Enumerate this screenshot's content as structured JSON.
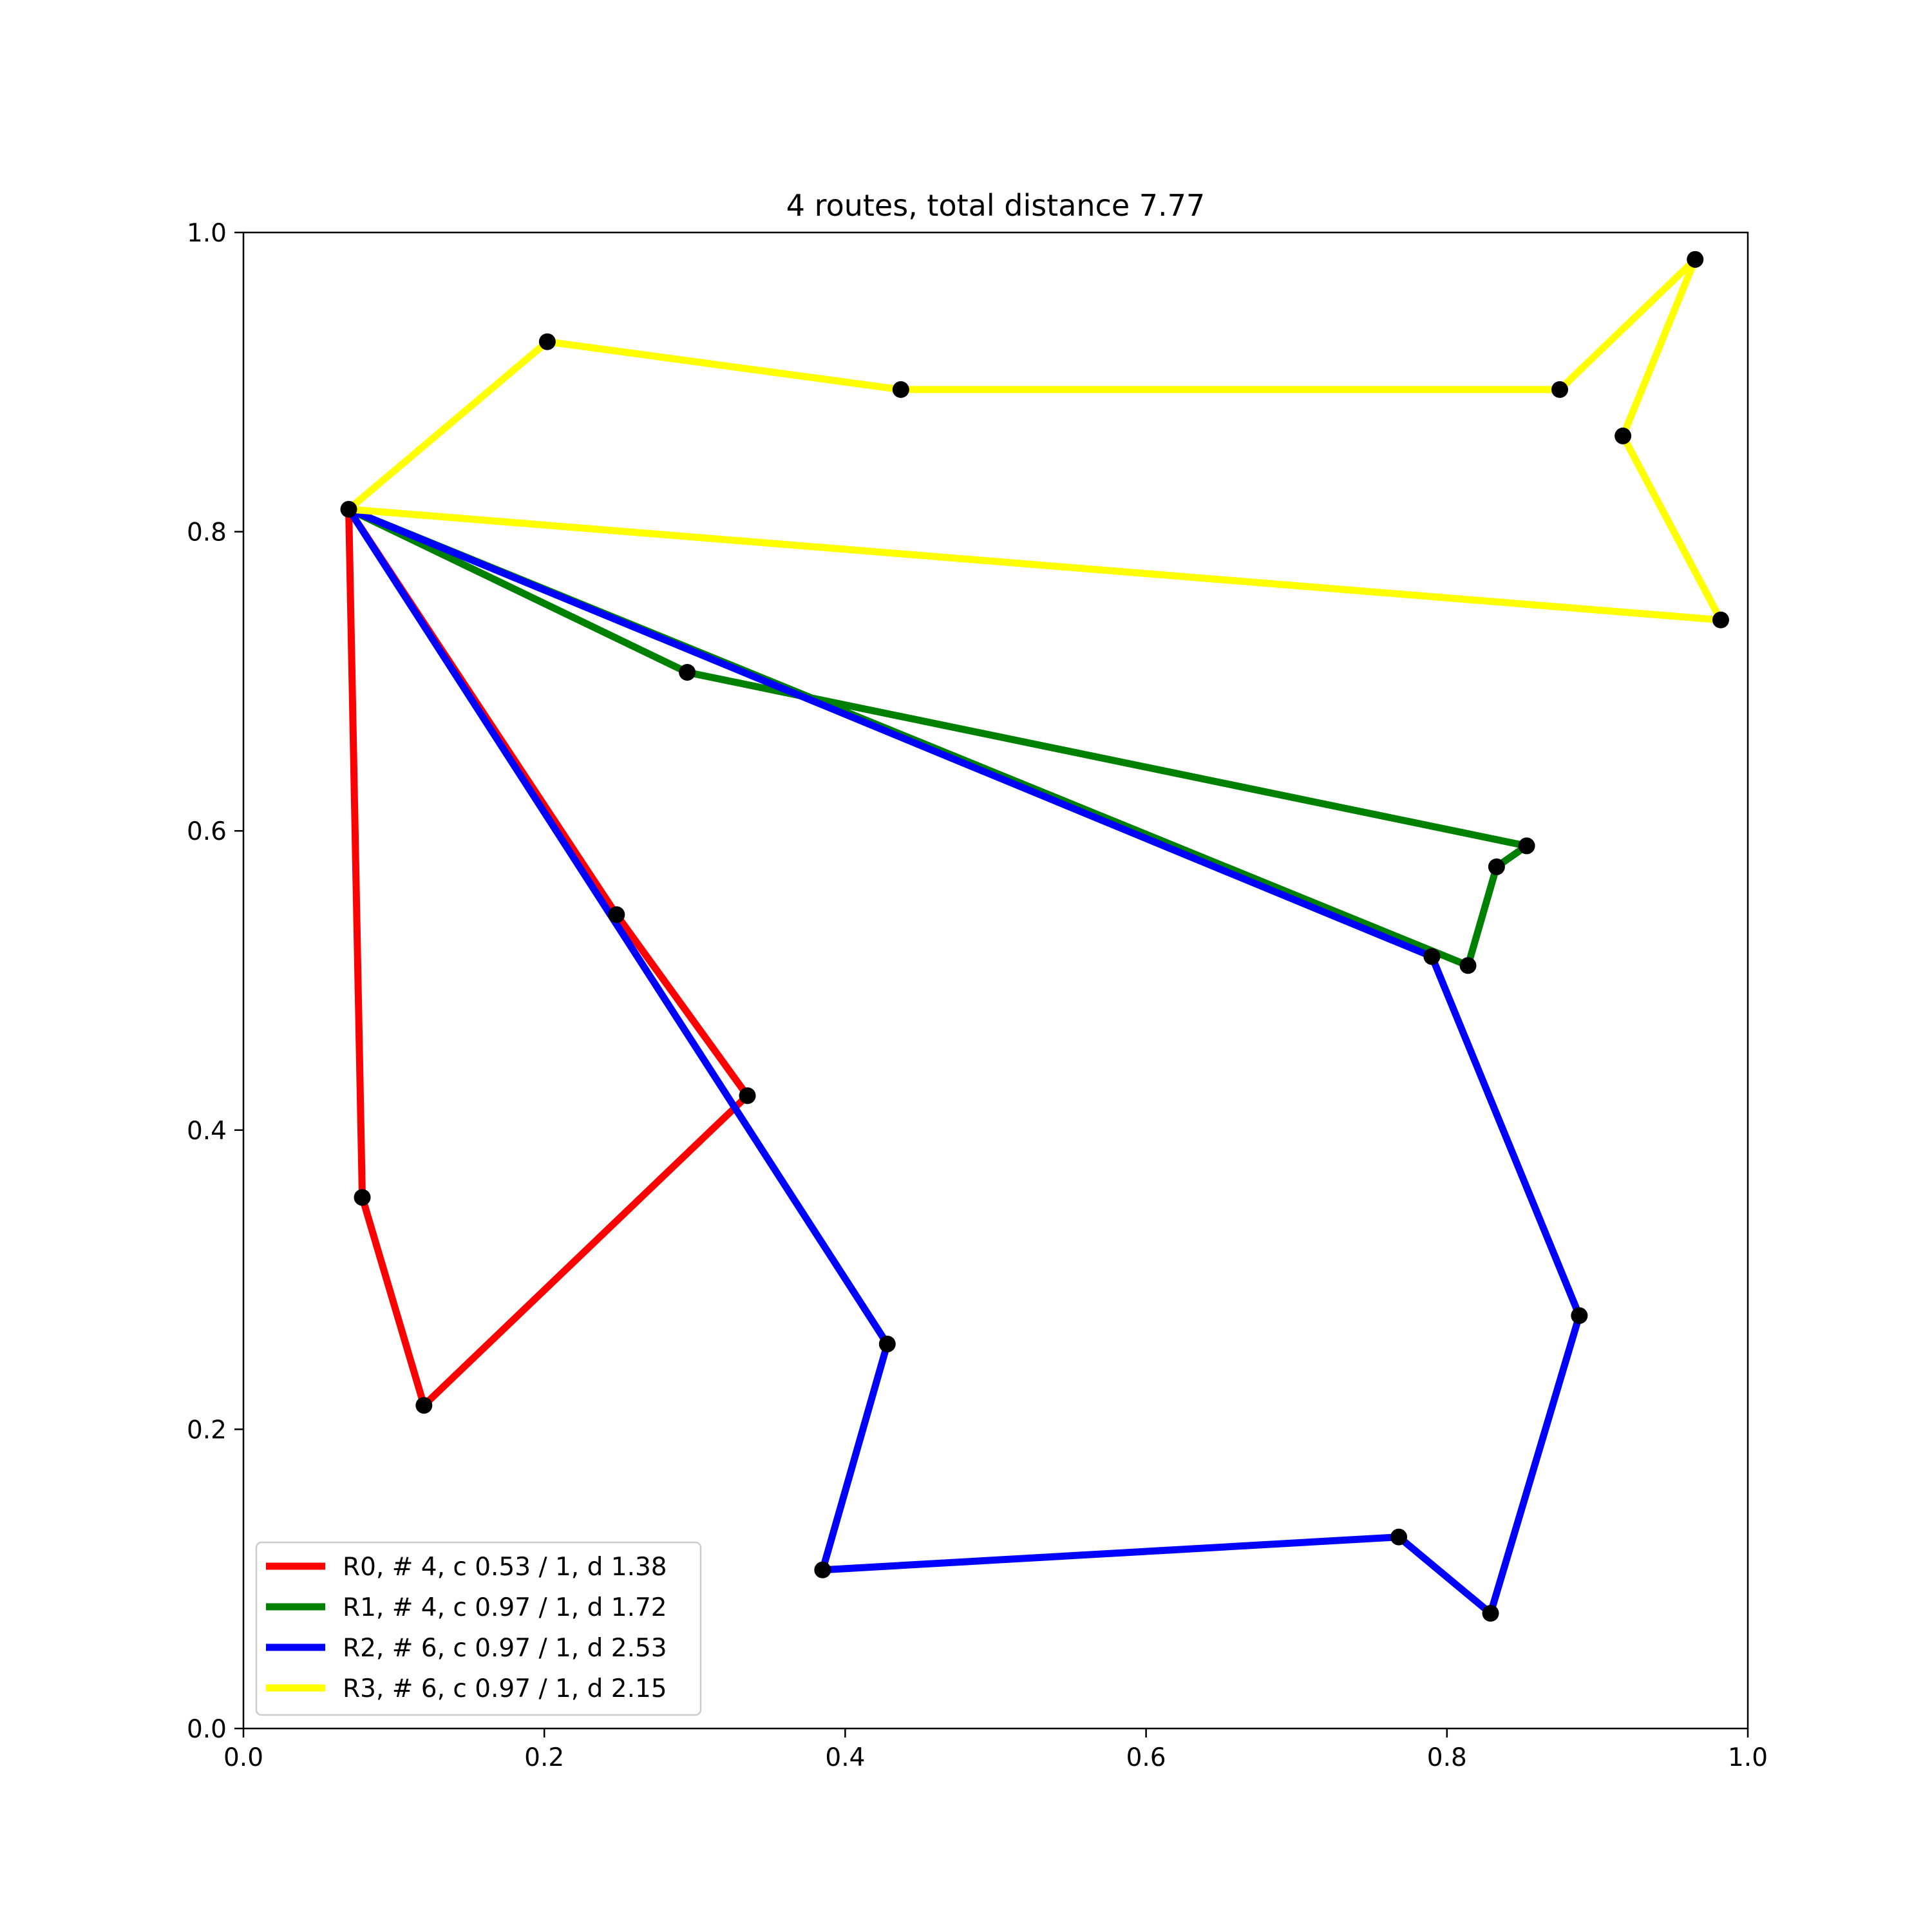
{
  "chart_data": {
    "type": "line",
    "title": "4 routes, total distance 7.77",
    "xlabel": "",
    "ylabel": "",
    "xlim": [
      0.0,
      1.0
    ],
    "ylim": [
      0.0,
      1.0
    ],
    "x_ticks": [
      "0.0",
      "0.2",
      "0.4",
      "0.6",
      "0.8",
      "1.0"
    ],
    "y_ticks": [
      "0.0",
      "0.2",
      "0.4",
      "0.6",
      "0.8",
      "1.0"
    ],
    "grid": false,
    "legend_position": "lower-left",
    "depot": [
      0.07,
      0.815
    ],
    "series": [
      {
        "name": "R0, # 4, c 0.53 / 1, d 1.38",
        "color": "#ff0000",
        "x": [
          0.07,
          0.248,
          0.335,
          0.12,
          0.079,
          0.07
        ],
        "y": [
          0.815,
          0.544,
          0.423,
          0.216,
          0.355,
          0.815
        ]
      },
      {
        "name": "R1, # 4, c 0.97 / 1, d 1.72",
        "color": "#008000",
        "x": [
          0.07,
          0.295,
          0.853,
          0.833,
          0.814,
          0.07
        ],
        "y": [
          0.815,
          0.706,
          0.59,
          0.576,
          0.51,
          0.815
        ]
      },
      {
        "name": "R2, # 6, c 0.97 / 1, d 2.53",
        "color": "#0000ff",
        "x": [
          0.07,
          0.428,
          0.385,
          0.768,
          0.829,
          0.888,
          0.79,
          0.07
        ],
        "y": [
          0.815,
          0.257,
          0.106,
          0.128,
          0.077,
          0.276,
          0.516,
          0.815
        ]
      },
      {
        "name": "R3, # 6, c 0.97 / 1, d 2.15",
        "color": "#ffff00",
        "x": [
          0.07,
          0.202,
          0.437,
          0.875,
          0.965,
          0.917,
          0.982,
          0.07
        ],
        "y": [
          0.815,
          0.927,
          0.895,
          0.895,
          0.982,
          0.864,
          0.741,
          0.815
        ]
      }
    ]
  }
}
